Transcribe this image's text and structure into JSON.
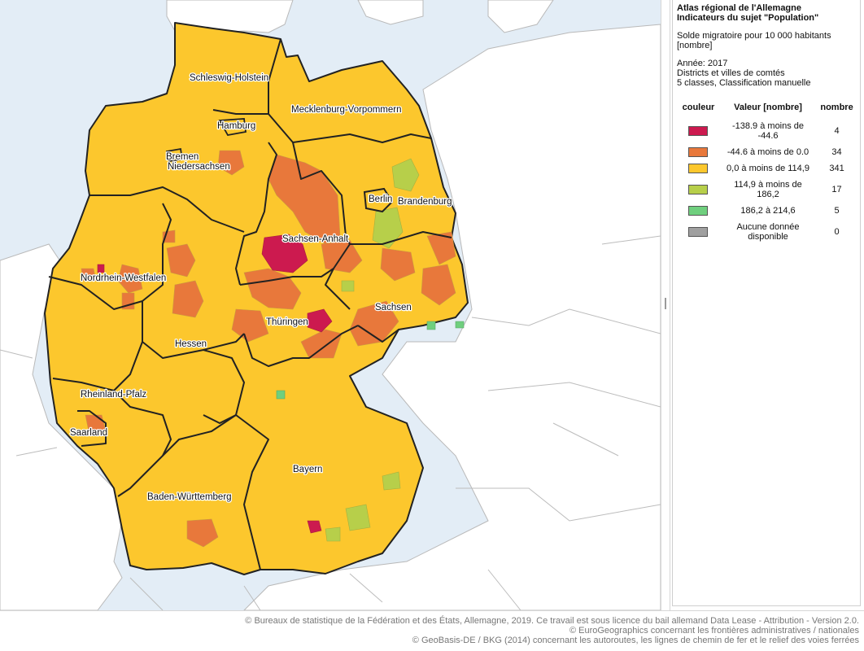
{
  "map": {
    "labels": [
      {
        "id": "schleswig-holstein",
        "text": "Schleswig-Holstein"
      },
      {
        "id": "hamburg",
        "text": "Hamburg"
      },
      {
        "id": "mecklenburg-vorpommern",
        "text": "Mecklenburg-Vorpommern"
      },
      {
        "id": "bremen",
        "text": "Bremen"
      },
      {
        "id": "niedersachsen",
        "text": "Niedersachsen"
      },
      {
        "id": "berlin",
        "text": "Berlin"
      },
      {
        "id": "brandenburg",
        "text": "Brandenburg"
      },
      {
        "id": "sachsen-anhalt",
        "text": "Sachsen-Anhalt"
      },
      {
        "id": "nordrhein-westfalen",
        "text": "Nordrhein-Westfalen"
      },
      {
        "id": "sachsen",
        "text": "Sachsen"
      },
      {
        "id": "thueringen",
        "text": "Thüringen"
      },
      {
        "id": "hessen",
        "text": "Hessen"
      },
      {
        "id": "rheinland-pfalz",
        "text": "Rheinland-Pfalz"
      },
      {
        "id": "saarland",
        "text": "Saarland"
      },
      {
        "id": "bayern",
        "text": "Bayern"
      },
      {
        "id": "baden-wuerttemberg",
        "text": "Baden-Württemberg"
      }
    ],
    "colors": {
      "water": "#e3edf6",
      "neighbors": "#ffffff",
      "class1": "#cc1a4f",
      "class2": "#e8783b",
      "class3": "#fcc72d",
      "class4": "#b7cf4a",
      "class5": "#6fcf7e",
      "nodata": "#a0a0a0"
    }
  },
  "legend": {
    "title_line1": "Atlas régional de l'Allemagne",
    "title_line2": "Indicateurs du sujet \"Population\"",
    "indicator_line1": "Solde migratoire pour 10 000 habitants",
    "indicator_line2": "[nombre]",
    "year": "Année: 2017",
    "level": "Districts et villes de comtés",
    "classification": "5 classes, Classification manuelle",
    "headers": {
      "color": "couleur",
      "value": "Valeur [nombre]",
      "count": "nombre"
    },
    "classes": [
      {
        "color": "#cc1a4f",
        "range": "-138.9 à moins de -44.6",
        "count": "4"
      },
      {
        "color": "#e8783b",
        "range": "-44.6 à moins de 0.0",
        "count": "34"
      },
      {
        "color": "#fcc72d",
        "range": "0,0 à moins de 114,9",
        "count": "341"
      },
      {
        "color": "#b7cf4a",
        "range": "114,9 à moins de 186,2",
        "count": "17"
      },
      {
        "color": "#6fcf7e",
        "range": "186,2 à 214,6",
        "count": "5"
      },
      {
        "color": "#a0a0a0",
        "range": "Aucune donnée disponible",
        "count": "0"
      }
    ]
  },
  "footer": {
    "line1": "© Bureaux de statistique de la Fédération et des États, Allemagne, 2019. Ce travail est sous licence du bail allemand Data Lease - Attribution - Version 2.0.",
    "line2": "© EuroGeographics concernant les frontières administratives / nationales",
    "line3": "© GeoBasis-DE / BKG (2014) concernant les autoroutes, les lignes de chemin de fer et le relief des voies ferrées"
  }
}
